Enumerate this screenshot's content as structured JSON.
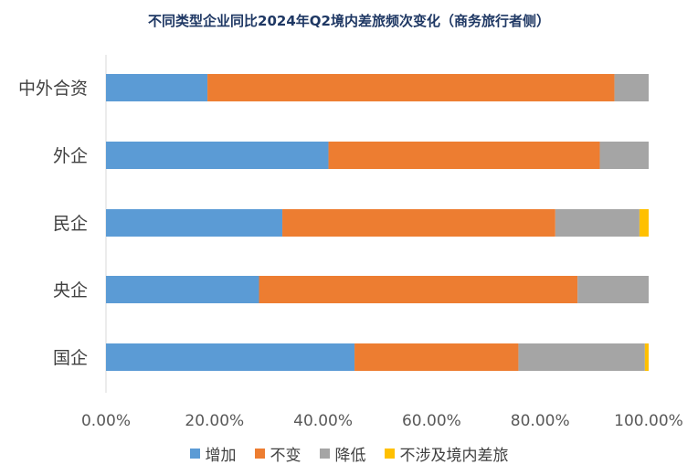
{
  "chart_data": {
    "type": "bar",
    "orientation": "horizontal",
    "stacked": true,
    "title": "不同类型企业同比2024年Q2境内差旅频次变化（商务旅行者侧）",
    "categories": [
      "中外合资",
      "外企",
      "民企",
      "央企",
      "国企"
    ],
    "series": [
      {
        "name": "增加",
        "color": "#5b9bd5",
        "values": [
          18.7,
          41.0,
          32.5,
          28.2,
          45.8
        ]
      },
      {
        "name": "不变",
        "color": "#ed7d31",
        "values": [
          75.0,
          50.0,
          50.3,
          58.7,
          30.2
        ]
      },
      {
        "name": "降低",
        "color": "#a5a5a5",
        "values": [
          6.3,
          9.0,
          15.5,
          13.1,
          23.3
        ]
      },
      {
        "name": "不涉及境内差旅",
        "color": "#ffc000",
        "values": [
          0,
          0,
          1.7,
          0,
          0.7
        ]
      }
    ],
    "xlim": [
      0,
      100
    ],
    "xticks": [
      "0.00%",
      "20.00%",
      "40.00%",
      "60.00%",
      "80.00%",
      "100.00%"
    ],
    "grid": false,
    "legend_position": "bottom"
  }
}
